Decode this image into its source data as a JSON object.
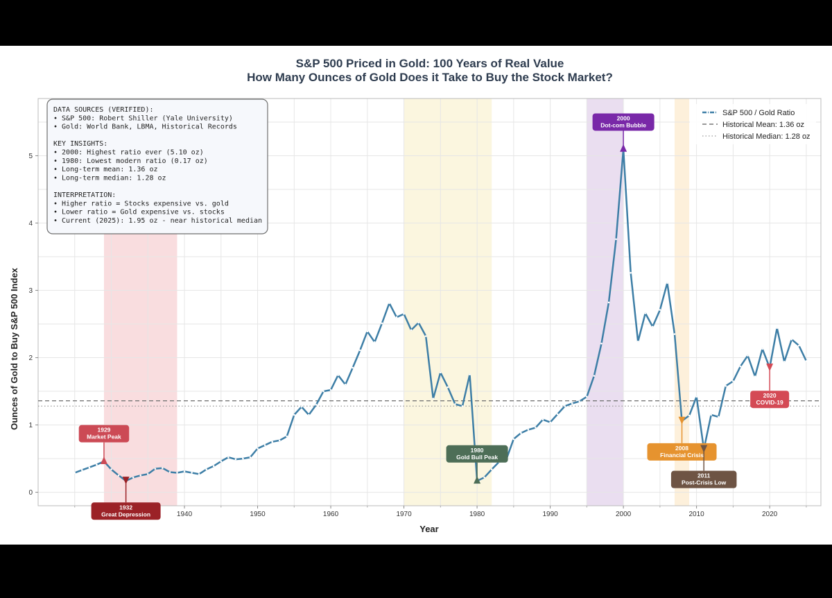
{
  "chart_data": {
    "type": "line",
    "title": "S&P 500 Priced in Gold: 100 Years of Real Value",
    "subtitle": "How Many Ounces of Gold Does it Take to Buy the Stock Market?",
    "xlabel": "Year",
    "ylabel": "Ounces of Gold to Buy S&P 500 Index",
    "xlim": [
      1920,
      2027
    ],
    "ylim": [
      -0.2,
      5.85
    ],
    "grid": true,
    "x_ticks": [
      1940,
      1950,
      1960,
      1970,
      1980,
      1990,
      2000,
      2010,
      2020
    ],
    "y_ticks": [
      0,
      1,
      2,
      3,
      4,
      5
    ],
    "series": [
      {
        "name": "S&P 500 / Gold Ratio",
        "color": "#3d7ea6",
        "x": [
          1925,
          1926,
          1927,
          1928,
          1929,
          1930,
          1931,
          1932,
          1933,
          1934,
          1935,
          1936,
          1937,
          1938,
          1939,
          1940,
          1941,
          1942,
          1943,
          1944,
          1945,
          1946,
          1947,
          1948,
          1949,
          1950,
          1951,
          1952,
          1953,
          1954,
          1955,
          1956,
          1957,
          1958,
          1959,
          1960,
          1961,
          1962,
          1963,
          1964,
          1965,
          1966,
          1967,
          1968,
          1969,
          1970,
          1971,
          1972,
          1973,
          1974,
          1975,
          1976,
          1977,
          1978,
          1979,
          1980,
          1981,
          1982,
          1983,
          1984,
          1985,
          1986,
          1987,
          1988,
          1989,
          1990,
          1991,
          1992,
          1993,
          1994,
          1995,
          1996,
          1997,
          1998,
          1999,
          2000,
          2001,
          2002,
          2003,
          2004,
          2005,
          2006,
          2007,
          2008,
          2009,
          2010,
          2011,
          2012,
          2013,
          2014,
          2015,
          2016,
          2017,
          2018,
          2019,
          2020,
          2021,
          2022,
          2023,
          2024,
          2025
        ],
        "values": [
          0.29,
          0.33,
          0.37,
          0.41,
          0.46,
          0.34,
          0.25,
          0.17,
          0.22,
          0.25,
          0.27,
          0.35,
          0.36,
          0.3,
          0.29,
          0.31,
          0.29,
          0.27,
          0.34,
          0.39,
          0.46,
          0.52,
          0.49,
          0.5,
          0.52,
          0.65,
          0.7,
          0.75,
          0.77,
          0.83,
          1.15,
          1.27,
          1.15,
          1.3,
          1.5,
          1.52,
          1.74,
          1.6,
          1.85,
          2.11,
          2.39,
          2.23,
          2.51,
          2.81,
          2.6,
          2.65,
          2.41,
          2.52,
          2.32,
          1.39,
          1.78,
          1.56,
          1.31,
          1.28,
          1.75,
          0.17,
          0.22,
          0.34,
          0.45,
          0.49,
          0.79,
          0.88,
          0.93,
          0.96,
          1.08,
          1.04,
          1.16,
          1.28,
          1.32,
          1.35,
          1.42,
          1.73,
          2.21,
          2.82,
          3.76,
          5.1,
          3.26,
          2.24,
          2.66,
          2.46,
          2.71,
          3.11,
          2.35,
          1.06,
          1.14,
          1.42,
          0.64,
          1.15,
          1.12,
          1.58,
          1.65,
          1.87,
          2.03,
          1.72,
          2.13,
          1.85,
          2.44,
          1.94,
          2.27,
          2.18,
          1.95
        ]
      },
      {
        "name": "Historical Mean: 1.36 oz",
        "type": "hline",
        "value": 1.36,
        "color": "#777777",
        "style": "dashed"
      },
      {
        "name": "Historical Median: 1.28 oz",
        "type": "hline",
        "value": 1.28,
        "color": "#999999",
        "style": "dotted"
      }
    ],
    "shaded_periods": [
      {
        "start": 1929,
        "end": 1939,
        "color": "#f4c1c4"
      },
      {
        "start": 1970,
        "end": 1982,
        "color": "#f8efc5"
      },
      {
        "start": 1995,
        "end": 2000,
        "color": "#d9c2e3"
      },
      {
        "start": 2007,
        "end": 2009,
        "color": "#fbe3bd"
      }
    ],
    "annotations": [
      {
        "year": 1929,
        "value": 0.46,
        "label_lines": [
          "1929",
          "Market Peak"
        ],
        "color": "#cc4a55",
        "label_value": 0.87,
        "marker": "up"
      },
      {
        "year": 1932,
        "value": 0.17,
        "label_lines": [
          "1932",
          "Great Depression"
        ],
        "color": "#9b2227",
        "label_value": -0.28,
        "marker": "down"
      },
      {
        "year": 1980,
        "value": 0.17,
        "label_lines": [
          "1980",
          "Gold Bull Peak"
        ],
        "color": "#4d6e57",
        "label_value": 0.57,
        "marker": "up"
      },
      {
        "year": 2000,
        "value": 5.1,
        "label_lines": [
          "2000",
          "Dot-com Bubble"
        ],
        "color": "#7928a8",
        "label_value": 5.5,
        "marker": "up"
      },
      {
        "year": 2008,
        "value": 1.06,
        "label_lines": [
          "2008",
          "Financial Crisis"
        ],
        "color": "#e6932f",
        "label_value": 0.6,
        "marker": "down"
      },
      {
        "year": 2011,
        "value": 0.64,
        "label_lines": [
          "2011",
          "Post-Crisis Low"
        ],
        "color": "#6e5444",
        "label_value": 0.19,
        "marker": "down"
      },
      {
        "year": 2020,
        "value": 1.85,
        "label_lines": [
          "2020",
          "COVID-19"
        ],
        "color": "#d44a55",
        "label_value": 1.38,
        "marker": "down"
      }
    ],
    "legend": {
      "position": "top-right",
      "entries": [
        "S&P 500 / Gold Ratio",
        "Historical Mean: 1.36 oz",
        "Historical Median: 1.28 oz"
      ]
    }
  },
  "info_box": {
    "lines": [
      "DATA SOURCES (VERIFIED):",
      "• S&P 500: Robert Shiller (Yale University)",
      "• Gold: World Bank, LBMA, Historical Records",
      "",
      "KEY INSIGHTS:",
      "• 2000: Highest ratio ever (5.10 oz)",
      "• 1980: Lowest modern ratio (0.17 oz)",
      "• Long-term mean: 1.36 oz",
      "• Long-term median: 1.28 oz",
      "",
      "INTERPRETATION:",
      "• Higher ratio = Stocks expensive vs. gold",
      "• Lower ratio = Gold expensive vs. stocks",
      "• Current (2025): 1.95 oz - near historical median"
    ]
  }
}
